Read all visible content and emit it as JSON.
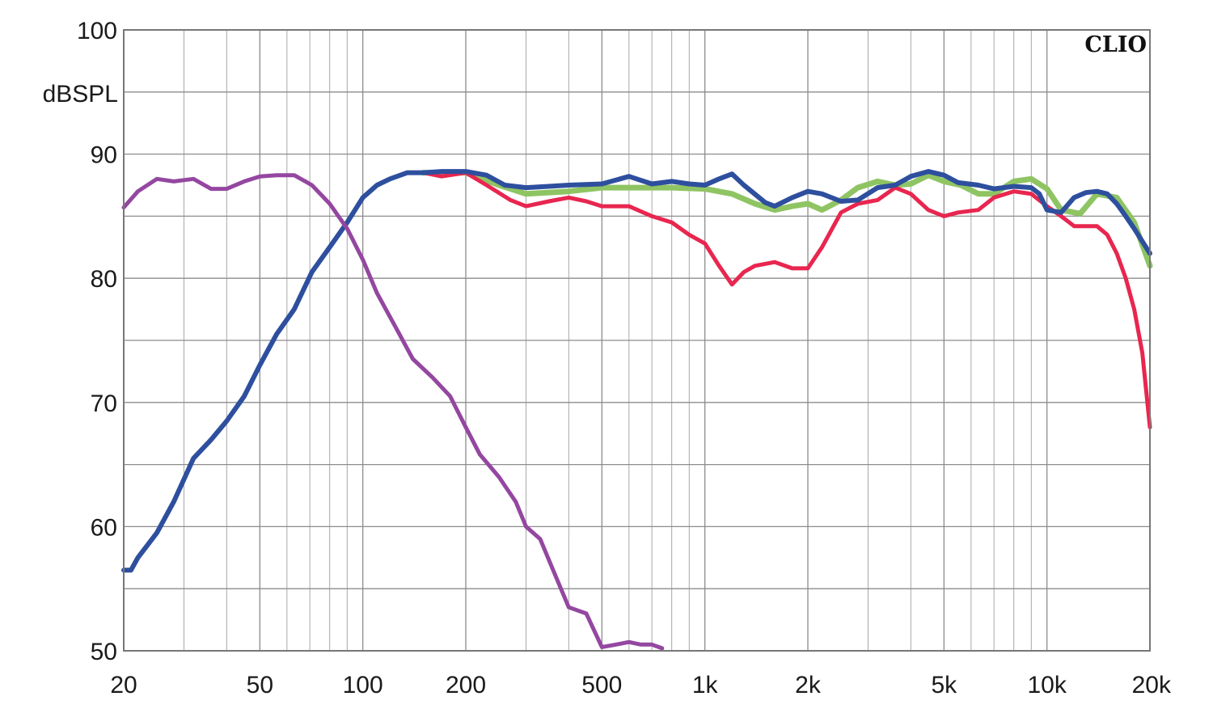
{
  "chart_data": {
    "type": "line",
    "title": "",
    "xlabel": "",
    "ylabel": "dBSPL",
    "brand": "CLIO",
    "x_scale": "log",
    "xlim": [
      20,
      20000
    ],
    "ylim": [
      50,
      100
    ],
    "grid": true,
    "legend": "none",
    "x_ticks": [
      {
        "value": 20,
        "label": "20"
      },
      {
        "value": 50,
        "label": "50"
      },
      {
        "value": 100,
        "label": "100"
      },
      {
        "value": 200,
        "label": "200"
      },
      {
        "value": 500,
        "label": "500"
      },
      {
        "value": 1000,
        "label": "1k"
      },
      {
        "value": 2000,
        "label": "2k"
      },
      {
        "value": 5000,
        "label": "5k"
      },
      {
        "value": 10000,
        "label": "10k"
      },
      {
        "value": 20000,
        "label": "20k"
      }
    ],
    "y_ticks": [
      {
        "value": 50,
        "label": "50"
      },
      {
        "value": 60,
        "label": "60"
      },
      {
        "value": 70,
        "label": "70"
      },
      {
        "value": 80,
        "label": "80"
      },
      {
        "value": 90,
        "label": "90"
      },
      {
        "value": 100,
        "label": "100"
      }
    ],
    "series": [
      {
        "color": "#8fc463",
        "width": 7,
        "x": [
          150,
          200,
          250,
          300,
          400,
          500,
          600,
          700,
          800,
          1000,
          1200,
          1400,
          1600,
          1800,
          2000,
          2200,
          2500,
          2800,
          3200,
          3600,
          4000,
          4500,
          5000,
          5600,
          6300,
          7000,
          8000,
          9000,
          10000,
          11000,
          12500,
          14000,
          16000,
          18000,
          20000
        ],
        "y": [
          88.5,
          88.5,
          87.5,
          86.8,
          87,
          87.3,
          87.3,
          87.3,
          87.3,
          87.2,
          86.8,
          86,
          85.5,
          85.8,
          86,
          85.5,
          86.3,
          87.3,
          87.8,
          87.5,
          87.6,
          88.3,
          87.8,
          87.5,
          86.8,
          86.8,
          87.8,
          88,
          87.2,
          85.5,
          85.2,
          86.8,
          86.5,
          84.5,
          81
        ]
      },
      {
        "color": "#e8264f",
        "width": 5,
        "x": [
          150,
          170,
          200,
          230,
          270,
          300,
          350,
          400,
          450,
          500,
          600,
          700,
          800,
          900,
          1000,
          1100,
          1200,
          1300,
          1400,
          1600,
          1800,
          2000,
          2200,
          2500,
          2800,
          3200,
          3600,
          4000,
          4500,
          5000,
          5500,
          6300,
          7000,
          8000,
          9000,
          10000,
          11000,
          12000,
          13000,
          14000,
          15000,
          16000,
          17000,
          18000,
          19000,
          20000
        ],
        "y": [
          88.5,
          88.2,
          88.5,
          87.5,
          86.3,
          85.8,
          86.2,
          86.5,
          86.2,
          85.8,
          85.8,
          85,
          84.5,
          83.5,
          82.8,
          81,
          79.5,
          80.5,
          81,
          81.3,
          80.8,
          80.8,
          82.5,
          85.3,
          86,
          86.3,
          87.3,
          86.8,
          85.5,
          85,
          85.3,
          85.5,
          86.5,
          87,
          86.8,
          85.8,
          85,
          84.2,
          84.2,
          84.2,
          83.5,
          82,
          80,
          77.5,
          74,
          68
        ]
      },
      {
        "color": "#2e4f9e",
        "width": 6,
        "x": [
          20,
          21,
          22,
          25,
          28,
          32,
          36,
          40,
          45,
          50,
          56,
          63,
          71,
          80,
          90,
          100,
          110,
          120,
          135,
          150,
          170,
          200,
          230,
          260,
          300,
          350,
          400,
          500,
          600,
          700,
          800,
          900,
          1000,
          1100,
          1200,
          1300,
          1500,
          1600,
          1800,
          2000,
          2200,
          2500,
          2800,
          3200,
          3600,
          4000,
          4500,
          5000,
          5500,
          6300,
          7000,
          8000,
          9000,
          9500,
          10000,
          11000,
          12000,
          13000,
          14000,
          15000,
          16000,
          17000,
          18000,
          20000
        ],
        "y": [
          56.5,
          56.5,
          57.5,
          59.5,
          62,
          65.5,
          67,
          68.5,
          70.5,
          73,
          75.5,
          77.5,
          80.5,
          82.5,
          84.5,
          86.5,
          87.5,
          88,
          88.5,
          88.5,
          88.6,
          88.6,
          88.3,
          87.5,
          87.3,
          87.4,
          87.5,
          87.6,
          88.2,
          87.6,
          87.8,
          87.6,
          87.5,
          88,
          88.4,
          87.5,
          86.1,
          85.8,
          86.5,
          87,
          86.8,
          86.2,
          86.3,
          87.3,
          87.5,
          88.2,
          88.6,
          88.3,
          87.7,
          87.5,
          87.2,
          87.4,
          87.3,
          86.8,
          85.5,
          85.3,
          86.5,
          86.9,
          87,
          86.8,
          86,
          85,
          84,
          82
        ]
      },
      {
        "color": "#9447a0",
        "width": 5,
        "x": [
          20,
          22,
          25,
          28,
          32,
          36,
          40,
          45,
          50,
          56,
          63,
          71,
          80,
          90,
          100,
          110,
          125,
          140,
          160,
          180,
          200,
          220,
          250,
          280,
          300,
          330,
          360,
          400,
          450,
          500,
          550,
          600,
          650,
          700,
          750
        ],
        "y": [
          85.7,
          87,
          88,
          87.8,
          88,
          87.2,
          87.2,
          87.8,
          88.2,
          88.3,
          88.3,
          87.5,
          86,
          84,
          81.5,
          78.8,
          76,
          73.5,
          72,
          70.5,
          68,
          65.8,
          64,
          62,
          60,
          59,
          56.5,
          53.5,
          53,
          50.3,
          50.5,
          50.7,
          50.5,
          50.5,
          50.2
        ]
      }
    ]
  }
}
